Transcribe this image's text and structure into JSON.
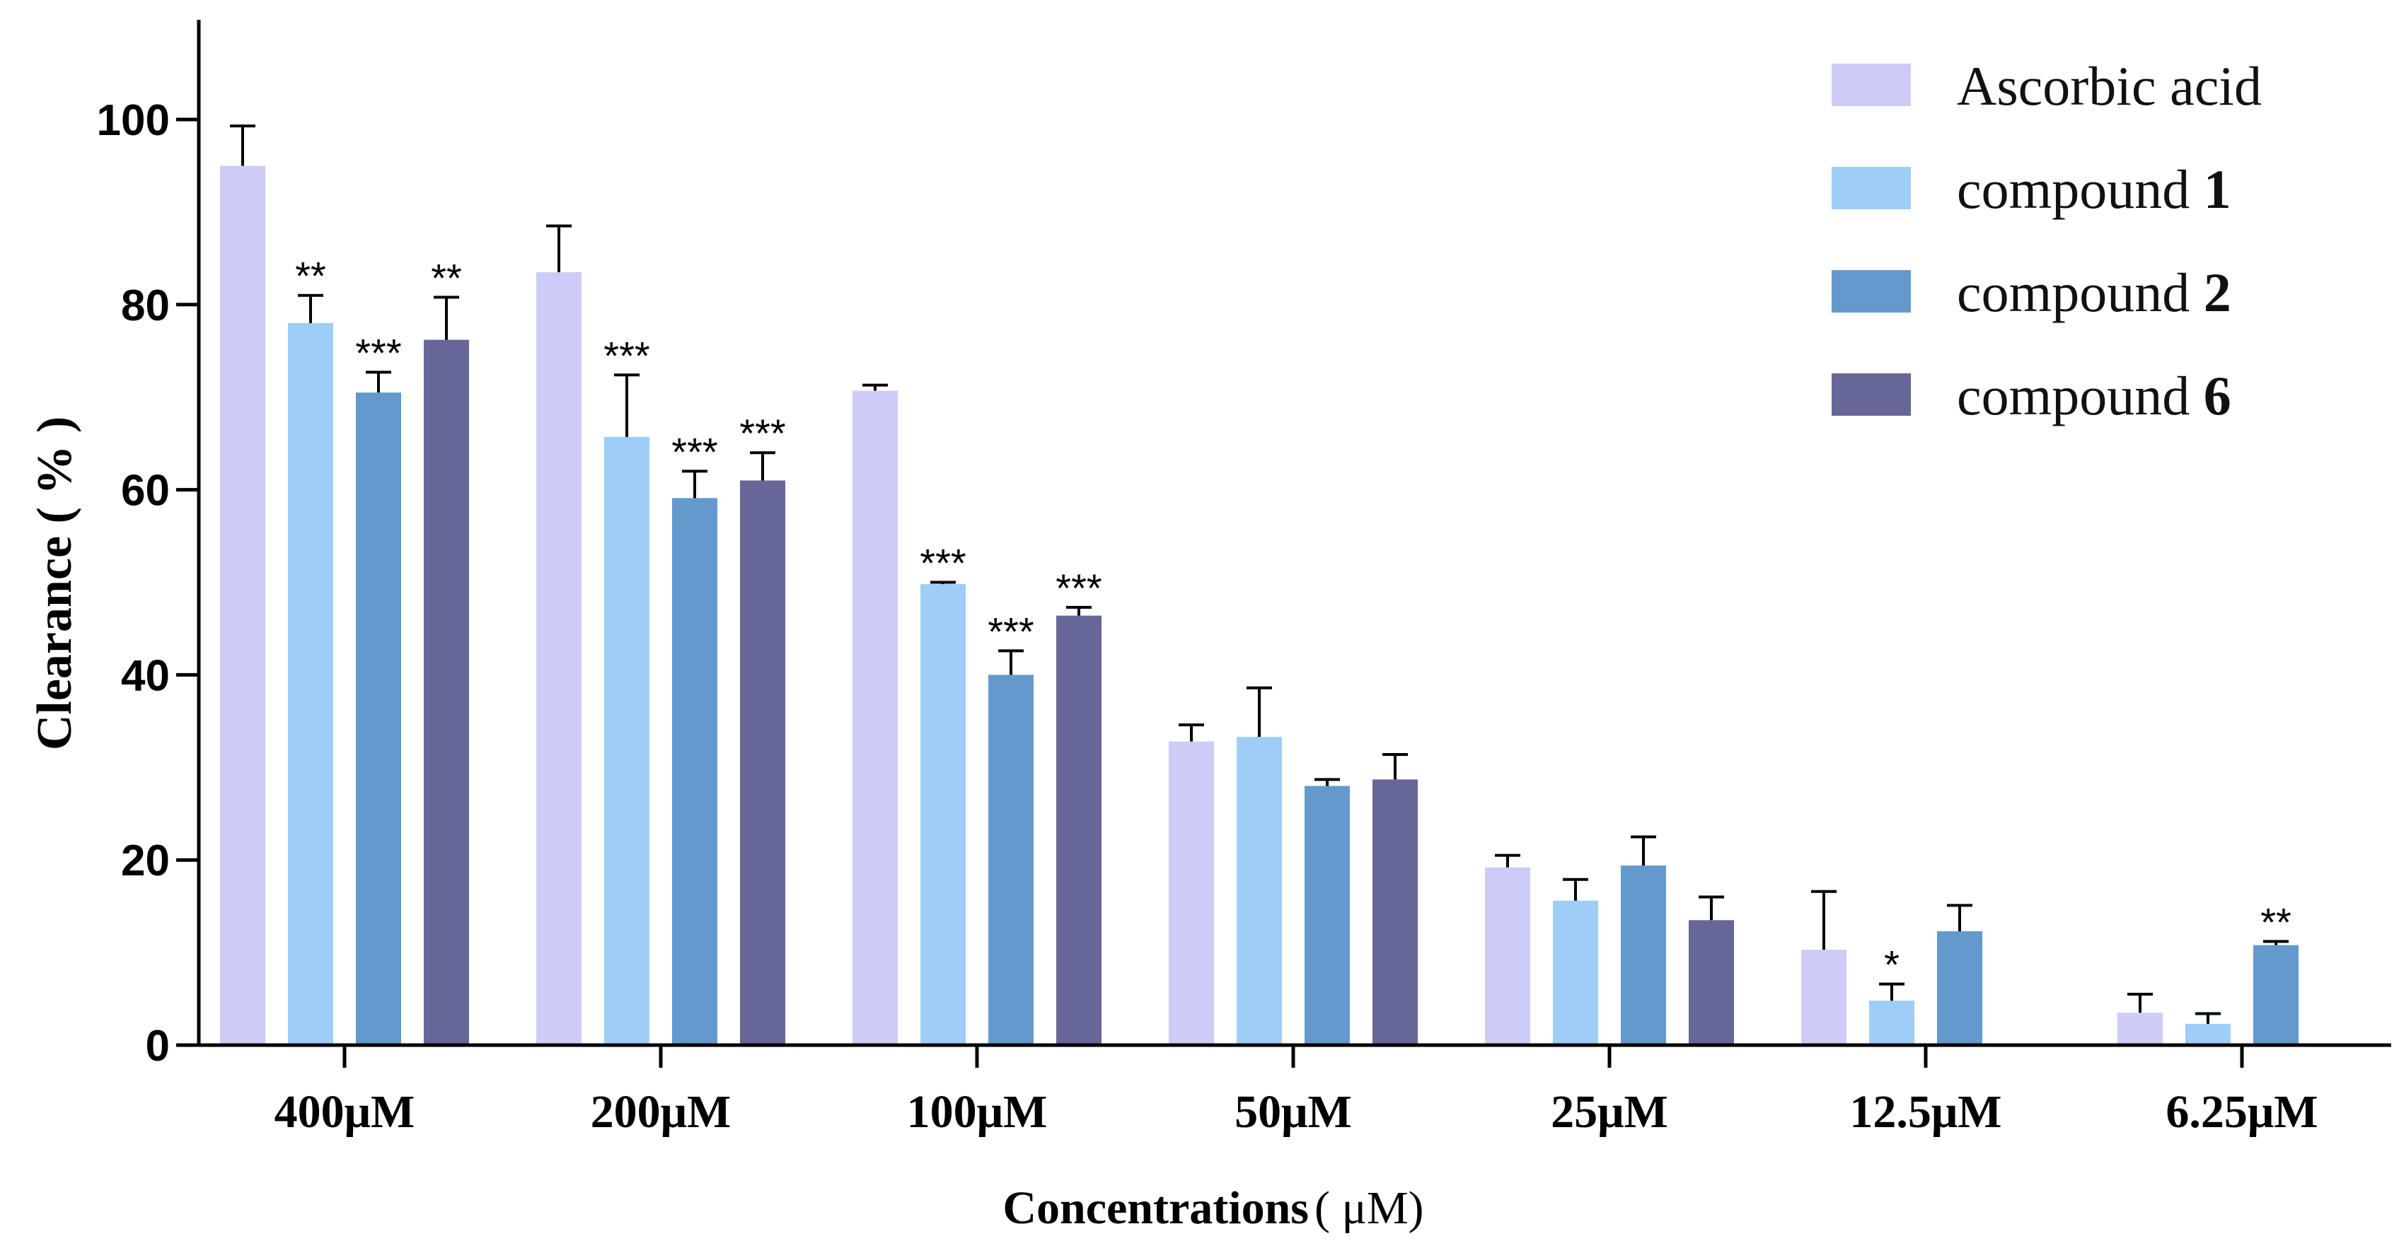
{
  "chart_data": {
    "type": "bar",
    "title": "",
    "xlabel": "Concentrations",
    "xlabel_unit": "( μM)",
    "ylabel": "Clearance ( % )",
    "ylim": [
      0,
      110
    ],
    "yticks": [
      "0",
      "20",
      "40",
      "60",
      "80",
      "100"
    ],
    "categories": [
      "400μM",
      "200μM",
      "100μM",
      "50μM",
      "25μM",
      "12.5μM",
      "6.25μM"
    ],
    "series": [
      {
        "name": "Ascorbic acid",
        "label_text": "Ascorbic acid",
        "label_num": "",
        "color": "#CDCCF7",
        "values": [
          95,
          83.5,
          70.7,
          32.8,
          19.2,
          10.3,
          3.5
        ],
        "errors": [
          4.3,
          5,
          0.6,
          1.8,
          1.3,
          6.3,
          2
        ],
        "sig": [
          "",
          "",
          "",
          "",
          "",
          "",
          ""
        ]
      },
      {
        "name": "compound 1",
        "label_text": "compound ",
        "label_num": "1",
        "color": "#9ECDF8",
        "values": [
          78,
          65.7,
          49.8,
          33.3,
          15.6,
          4.8,
          2.3
        ],
        "errors": [
          3,
          6.7,
          0.2,
          5.3,
          2.3,
          1.8,
          1.1
        ],
        "sig": [
          "**",
          "***",
          "***",
          "",
          "",
          "*",
          ""
        ]
      },
      {
        "name": "compound 2",
        "label_text": "compound ",
        "label_num": "2",
        "color": "#6399CC",
        "values": [
          70.5,
          59.1,
          40,
          28,
          19.4,
          12.3,
          10.8
        ],
        "errors": [
          2.2,
          2.9,
          2.6,
          0.7,
          3.1,
          2.8,
          0.4
        ],
        "sig": [
          "***",
          "***",
          "***",
          "",
          "",
          "",
          "**"
        ]
      },
      {
        "name": "compound 6",
        "label_text": "compound ",
        "label_num": "6",
        "color": "#676699",
        "values": [
          76.2,
          61,
          46.4,
          28.7,
          13.5,
          null,
          null
        ],
        "errors": [
          4.6,
          3,
          0.9,
          2.7,
          2.5,
          null,
          null
        ],
        "sig": [
          "**",
          "***",
          "***",
          "",
          "",
          "",
          ""
        ]
      }
    ],
    "error_bars": "one-sided (upper)",
    "legend_position": "top-right",
    "grid": false
  }
}
